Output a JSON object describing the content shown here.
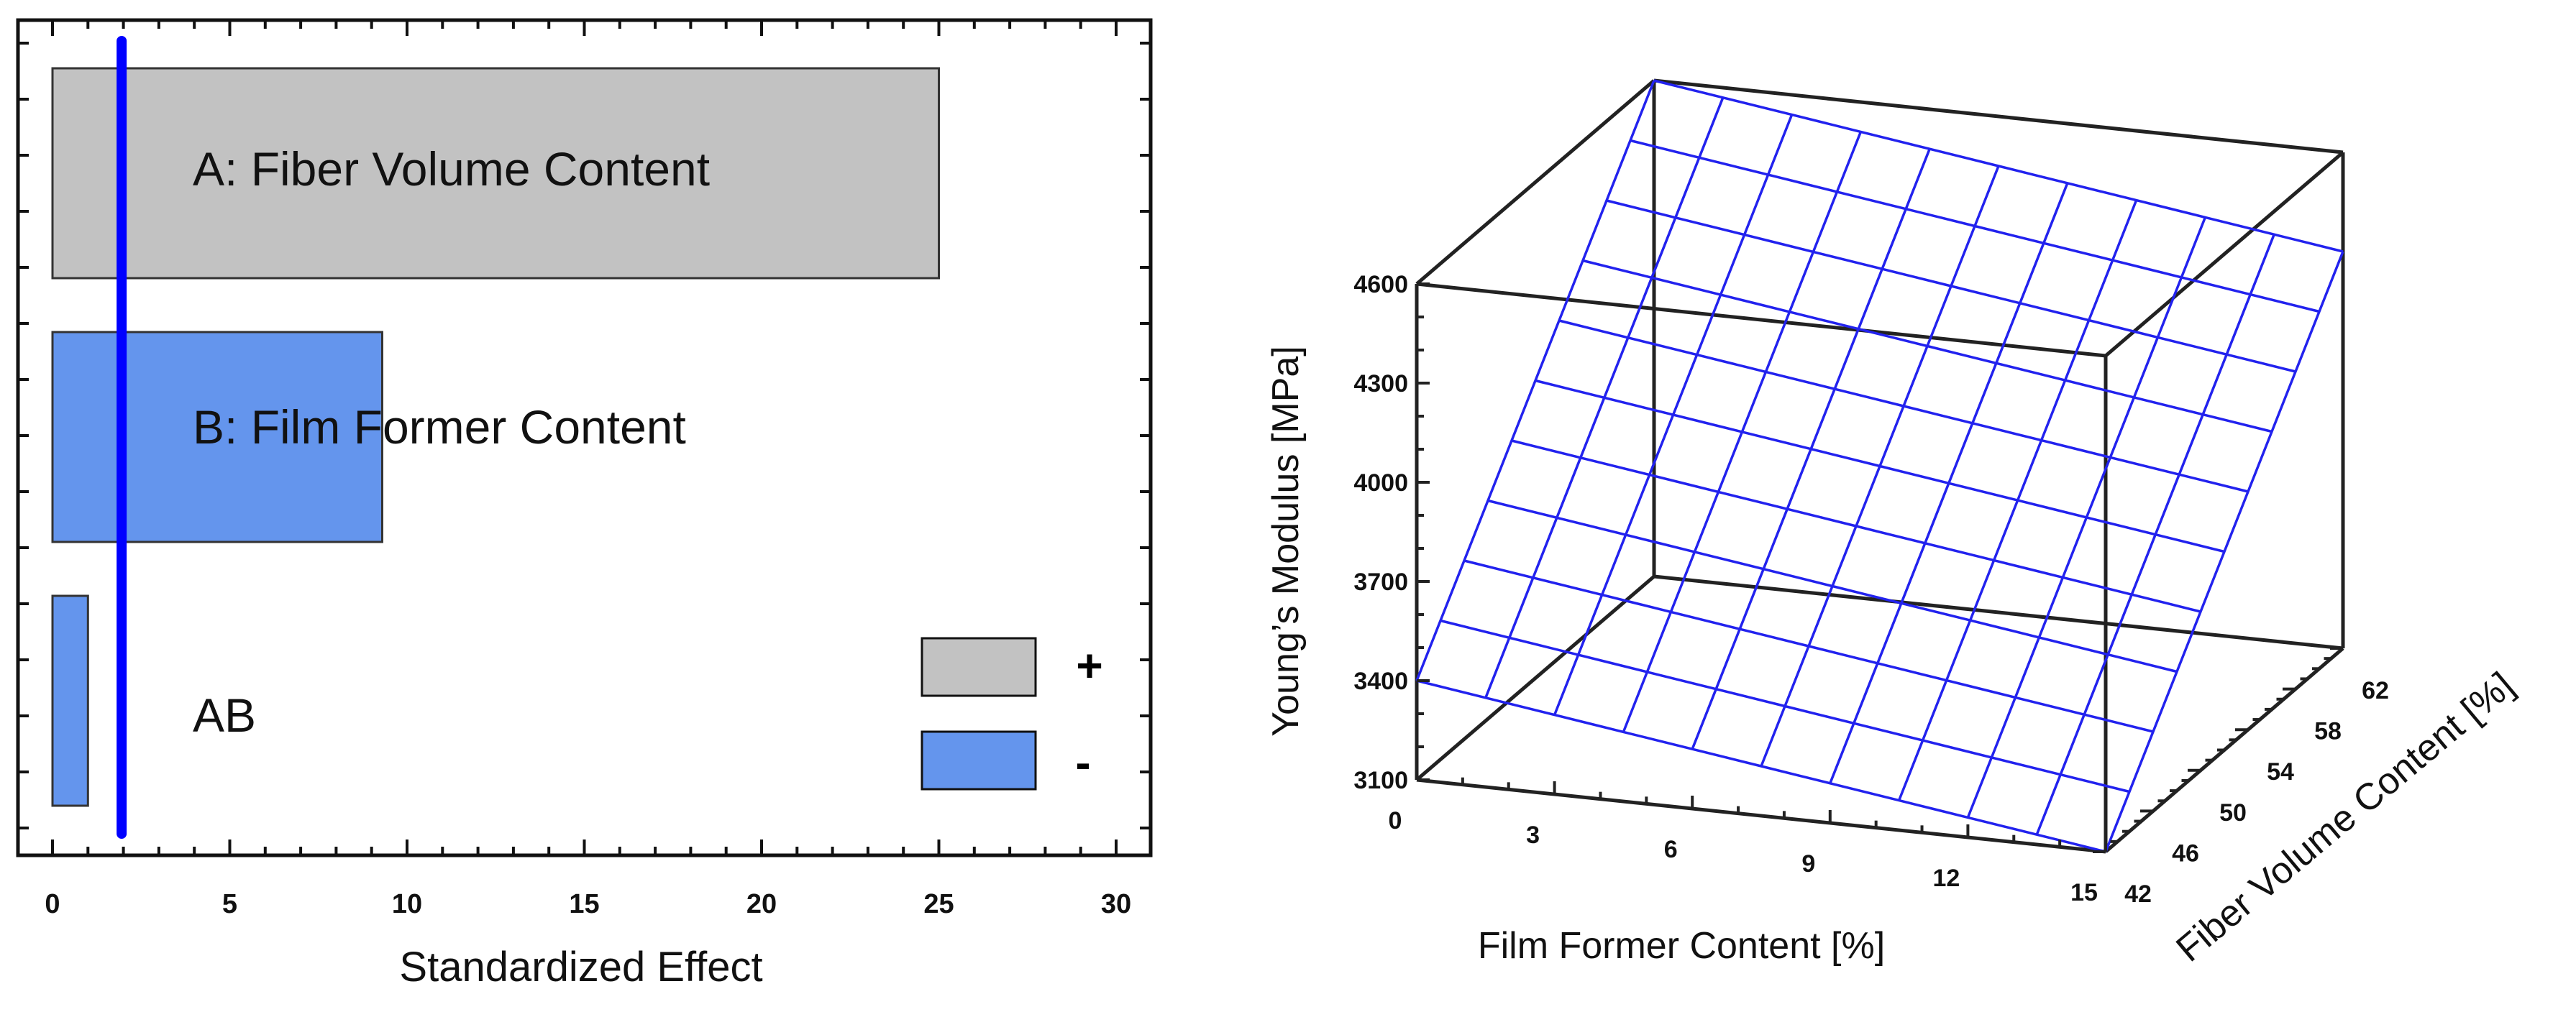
{
  "chart_data": [
    {
      "type": "bar",
      "orientation": "horizontal",
      "chart_kind": "standardized effects (Pareto) chart",
      "categories": [
        "A: Fiber Volume Content",
        "B: Film Former Content",
        "AB"
      ],
      "values": [
        25.0,
        9.3,
        1.0
      ],
      "signs": [
        "+",
        "-",
        "-"
      ],
      "reference_line": 1.95,
      "xlabel": "Standardized Effect",
      "xticks": [
        "0",
        "5",
        "10",
        "15",
        "20",
        "25",
        "30"
      ],
      "xlim": [
        -1,
        30.8
      ],
      "legend": {
        "placement": "bottom-right",
        "entries": [
          "+",
          "-"
        ]
      },
      "grid": false,
      "colors": {
        "positive": "#c2c2c2",
        "negative": "#6495ed",
        "reference_line": "#0000ff"
      }
    },
    {
      "type": "surface",
      "xlabel": "Film Former Content [%]",
      "ylabel": "Fiber Volume Content [%]",
      "zlabel": "Young’s Modulus [MPa]",
      "xticks": [
        "0",
        "3",
        "6",
        "9",
        "12",
        "15"
      ],
      "yticks": [
        "42",
        "46",
        "50",
        "54",
        "58",
        "62"
      ],
      "zticks": [
        "3100",
        "3400",
        "3700",
        "4000",
        "4300",
        "4600"
      ],
      "xlim": [
        0,
        15
      ],
      "ylim": [
        42,
        62
      ],
      "zlim": [
        3100,
        4600
      ],
      "grid_lines": 10,
      "corner_values": [
        {
          "x": 0,
          "y": 42,
          "z": 3400
        },
        {
          "x": 15,
          "y": 42,
          "z": 3100
        },
        {
          "x": 0,
          "y": 62,
          "z": 4600
        },
        {
          "x": 15,
          "y": 62,
          "z": 4300
        }
      ],
      "colors": {
        "surface": "#2222ee",
        "box": "#222222"
      }
    }
  ]
}
